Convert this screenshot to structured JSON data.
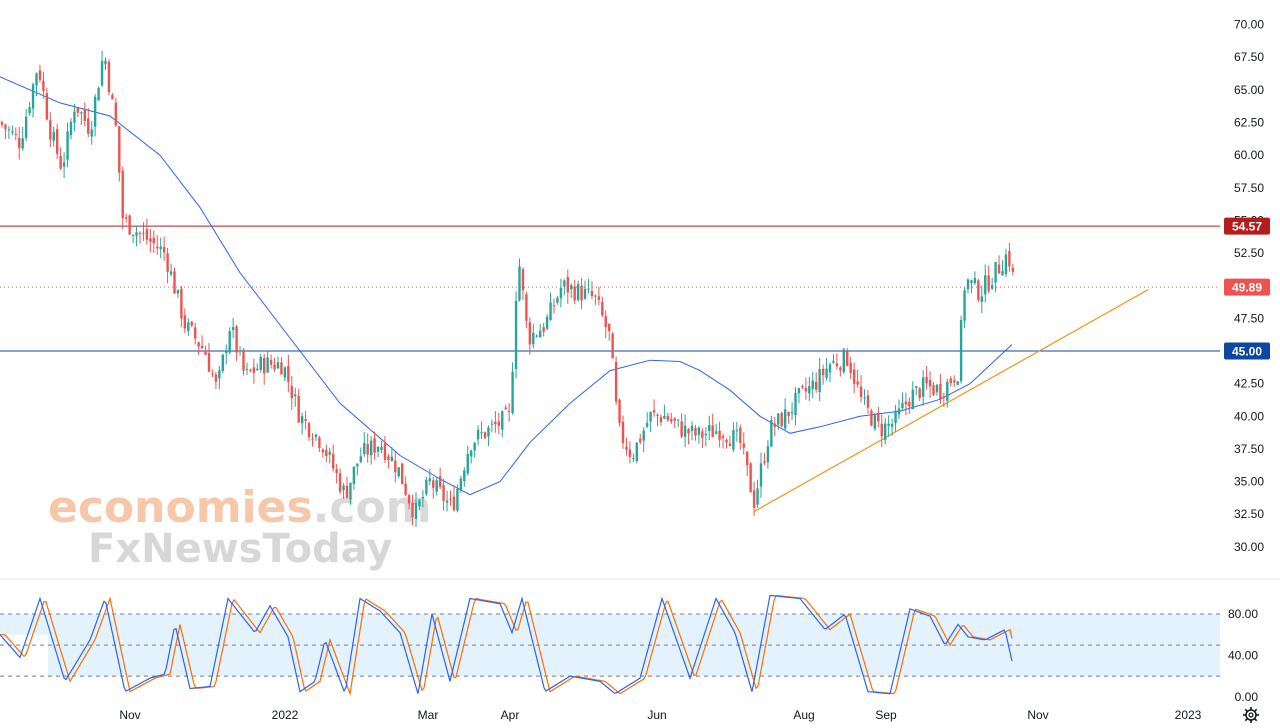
{
  "watermark": {
    "line1_main": "economies",
    "line1_suffix": ".com",
    "line2": "FxNewsToday"
  },
  "colors": {
    "up": "#26a69a",
    "down": "#ef5350",
    "ma": "#2962ff",
    "trendline": "#f7931a",
    "resistance": "#b71c1c",
    "support": "#0d47a1",
    "current": "#ef5350",
    "stoch_k": "#2962ff",
    "stoch_d": "#ff6d00",
    "stoch_band": "#e3f2fd"
  },
  "settings_icon": "gear-icon",
  "chart_data": {
    "type": "candlestick",
    "price_axis": {
      "ylim": [
        28,
        71.5
      ],
      "ticks": [
        "30.00",
        "32.50",
        "35.00",
        "37.50",
        "40.00",
        "42.50",
        "45.00",
        "47.50",
        "50.00",
        "52.50",
        "55.00",
        "57.50",
        "60.00",
        "62.50",
        "65.00",
        "67.50",
        "70.00"
      ]
    },
    "stoch_axis": {
      "ylim": [
        -5,
        110
      ],
      "ticks": [
        "0.00",
        "40.00",
        "80.00"
      ],
      "band": [
        20,
        80
      ]
    },
    "x_axis": {
      "ticks": [
        {
          "label": "Nov",
          "pos": 130
        },
        {
          "label": "2022",
          "pos": 285
        },
        {
          "label": "Mar",
          "pos": 428
        },
        {
          "label": "Apr",
          "pos": 510
        },
        {
          "label": "Jun",
          "pos": 657
        },
        {
          "label": "Aug",
          "pos": 804
        },
        {
          "label": "Sep",
          "pos": 886
        },
        {
          "label": "Nov",
          "pos": 1038
        },
        {
          "label": "2023",
          "pos": 1188
        }
      ]
    },
    "levels": [
      {
        "name": "resistance",
        "value": 54.57,
        "label": "54.57",
        "style": "solid"
      },
      {
        "name": "current-price",
        "value": 49.89,
        "label": "49.89",
        "style": "dotted"
      },
      {
        "name": "support",
        "value": 45.0,
        "label": "45.00",
        "style": "solid"
      }
    ],
    "trendline": {
      "from": [
        754,
        32.7
      ],
      "to": [
        1148,
        49.7
      ]
    },
    "price_waypoints": [
      [
        0,
        62.5
      ],
      [
        20,
        61
      ],
      [
        38,
        67
      ],
      [
        50,
        62
      ],
      [
        62,
        59
      ],
      [
        75,
        64
      ],
      [
        90,
        62
      ],
      [
        104,
        68
      ],
      [
        116,
        62
      ],
      [
        123,
        55
      ],
      [
        140,
        54
      ],
      [
        165,
        52.5
      ],
      [
        185,
        47
      ],
      [
        205,
        45
      ],
      [
        217,
        42
      ],
      [
        230,
        47
      ],
      [
        245,
        43
      ],
      [
        262,
        44
      ],
      [
        283,
        44
      ],
      [
        300,
        40
      ],
      [
        322,
        38
      ],
      [
        345,
        34
      ],
      [
        360,
        37
      ],
      [
        380,
        38
      ],
      [
        398,
        36
      ],
      [
        415,
        32.5
      ],
      [
        430,
        35
      ],
      [
        452,
        33
      ],
      [
        470,
        38
      ],
      [
        490,
        39
      ],
      [
        510,
        40
      ],
      [
        518,
        52.5
      ],
      [
        528,
        46
      ],
      [
        545,
        47
      ],
      [
        562,
        50
      ],
      [
        580,
        49.5
      ],
      [
        595,
        49
      ],
      [
        610,
        46
      ],
      [
        618,
        39
      ],
      [
        632,
        37
      ],
      [
        650,
        40
      ],
      [
        665,
        40
      ],
      [
        682,
        39
      ],
      [
        698,
        38.5
      ],
      [
        720,
        39
      ],
      [
        740,
        38
      ],
      [
        754,
        33.5
      ],
      [
        770,
        39
      ],
      [
        785,
        40
      ],
      [
        800,
        41.5
      ],
      [
        815,
        42.5
      ],
      [
        830,
        44
      ],
      [
        848,
        44.5
      ],
      [
        862,
        41
      ],
      [
        880,
        39
      ],
      [
        894,
        39.5
      ],
      [
        910,
        41.5
      ],
      [
        925,
        42.3
      ],
      [
        942,
        42
      ],
      [
        958,
        43.5
      ],
      [
        965,
        50.5
      ],
      [
        980,
        49.5
      ],
      [
        995,
        51
      ],
      [
        1008,
        52.5
      ],
      [
        1015,
        49.9
      ]
    ],
    "ma_waypoints": [
      [
        0,
        66
      ],
      [
        60,
        64
      ],
      [
        110,
        63
      ],
      [
        160,
        60
      ],
      [
        200,
        56
      ],
      [
        240,
        51
      ],
      [
        290,
        46
      ],
      [
        340,
        41
      ],
      [
        400,
        37
      ],
      [
        440,
        35.2
      ],
      [
        470,
        34
      ],
      [
        500,
        35
      ],
      [
        530,
        38
      ],
      [
        570,
        41
      ],
      [
        610,
        43.5
      ],
      [
        650,
        44.3
      ],
      [
        680,
        44.2
      ],
      [
        700,
        43.5
      ],
      [
        730,
        42
      ],
      [
        760,
        40
      ],
      [
        790,
        38.7
      ],
      [
        820,
        39.2
      ],
      [
        860,
        40
      ],
      [
        900,
        40.4
      ],
      [
        940,
        41.3
      ],
      [
        970,
        42.5
      ],
      [
        1012,
        45.5
      ]
    ],
    "stoch_waypoints": [
      [
        0,
        60
      ],
      [
        20,
        38
      ],
      [
        40,
        95
      ],
      [
        65,
        15
      ],
      [
        90,
        55
      ],
      [
        105,
        95
      ],
      [
        125,
        5
      ],
      [
        150,
        18
      ],
      [
        165,
        22
      ],
      [
        175,
        70
      ],
      [
        190,
        8
      ],
      [
        210,
        10
      ],
      [
        228,
        95
      ],
      [
        255,
        62
      ],
      [
        270,
        88
      ],
      [
        288,
        58
      ],
      [
        300,
        5
      ],
      [
        315,
        15
      ],
      [
        325,
        55
      ],
      [
        345,
        3
      ],
      [
        360,
        95
      ],
      [
        380,
        83
      ],
      [
        400,
        62
      ],
      [
        418,
        3
      ],
      [
        432,
        80
      ],
      [
        450,
        15
      ],
      [
        470,
        95
      ],
      [
        500,
        90
      ],
      [
        512,
        62
      ],
      [
        522,
        95
      ],
      [
        545,
        5
      ],
      [
        570,
        20
      ],
      [
        600,
        15
      ],
      [
        615,
        3
      ],
      [
        640,
        18
      ],
      [
        662,
        95
      ],
      [
        690,
        18
      ],
      [
        716,
        95
      ],
      [
        735,
        62
      ],
      [
        752,
        5
      ],
      [
        770,
        98
      ],
      [
        800,
        95
      ],
      [
        825,
        65
      ],
      [
        845,
        80
      ],
      [
        868,
        5
      ],
      [
        890,
        3
      ],
      [
        910,
        85
      ],
      [
        930,
        78
      ],
      [
        945,
        50
      ],
      [
        958,
        70
      ],
      [
        968,
        58
      ],
      [
        985,
        55
      ],
      [
        1005,
        65
      ],
      [
        1013,
        30
      ]
    ]
  }
}
